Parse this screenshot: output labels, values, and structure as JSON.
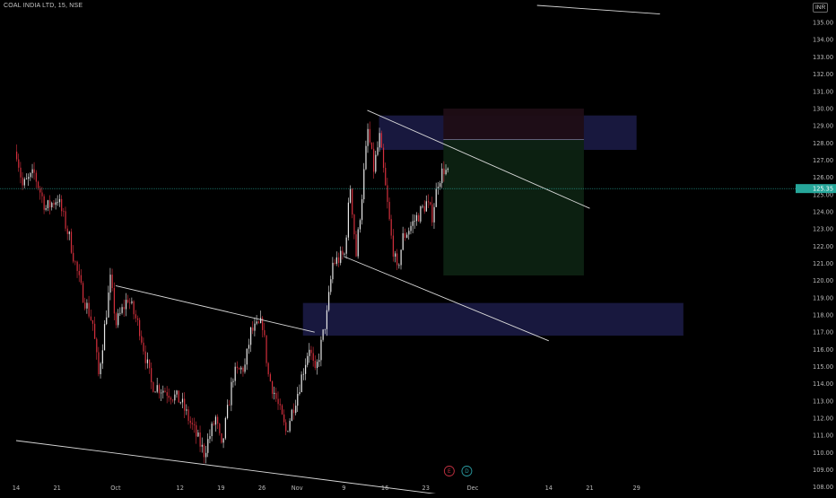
{
  "header": {
    "symbol_line": "COAL INDIA LTD, 15, NSE",
    "currency": "INR"
  },
  "colors": {
    "background": "#000000",
    "up_candle": "#e8e8e8",
    "down_candle": "#d32f3c",
    "price_line": "#26a69a",
    "trendline": "#d8d8d8",
    "zone": "#1c1c4a",
    "target_zone": "#0d2212",
    "stop_zone": "#1f0d15"
  },
  "markers": [
    {
      "label": "E",
      "kind": "earnings",
      "date": "Nov 27"
    },
    {
      "label": "D",
      "kind": "dividend",
      "date": "Nov 30"
    }
  ],
  "chart_data": {
    "type": "candlestick",
    "title": "COAL INDIA LTD, 15, NSE",
    "y_axis_side": "right",
    "ylim": [
      107.5,
      135.7
    ],
    "y_ticks": [
      "108.00",
      "109.00",
      "110.00",
      "111.00",
      "112.00",
      "113.00",
      "114.00",
      "115.00",
      "116.00",
      "117.00",
      "118.00",
      "119.00",
      "120.00",
      "121.00",
      "122.00",
      "123.00",
      "124.00",
      "125.00",
      "126.00",
      "127.00",
      "128.00",
      "129.00",
      "130.00",
      "131.00",
      "132.00",
      "133.00",
      "134.00",
      "135.00"
    ],
    "x_ticks": [
      "14",
      "21",
      "Oct",
      "12",
      "19",
      "26",
      "Nov",
      "9",
      "16",
      "23",
      "Dec",
      "14",
      "21",
      "29"
    ],
    "last_price": "125.35",
    "price_path": [
      [
        "Sep 14",
        127.5
      ],
      [
        "Sep 15",
        125.5
      ],
      [
        "Sep 17",
        126.2
      ],
      [
        "Sep 19",
        124.2
      ],
      [
        "Sep 21",
        124.8
      ],
      [
        "Sep 23",
        122.5
      ],
      [
        "Sep 25",
        119.5
      ],
      [
        "Sep 27",
        117.5
      ],
      [
        "Sep 28",
        114.5
      ],
      [
        "Sep 30",
        120.0
      ],
      [
        "Oct 1",
        117.5
      ],
      [
        "Oct 3",
        119.0
      ],
      [
        "Oct 5",
        117.2
      ],
      [
        "Oct 7",
        114.0
      ],
      [
        "Oct 10",
        113.5
      ],
      [
        "Oct 12",
        113.0
      ],
      [
        "Oct 14",
        111.5
      ],
      [
        "Oct 16",
        110.0
      ],
      [
        "Oct 18",
        112.0
      ],
      [
        "Oct 19",
        110.2
      ],
      [
        "Oct 21",
        114.5
      ],
      [
        "Oct 23",
        115.0
      ],
      [
        "Oct 24",
        117.0
      ],
      [
        "Oct 26",
        117.5
      ],
      [
        "Oct 27",
        114.5
      ],
      [
        "Oct 28",
        113.5
      ],
      [
        "Oct 30",
        111.2
      ],
      [
        "Nov 1",
        113.5
      ],
      [
        "Nov 3",
        116.2
      ],
      [
        "Nov 4",
        114.5
      ],
      [
        "Nov 6",
        118.0
      ],
      [
        "Nov 7",
        121.0
      ],
      [
        "Nov 9",
        121.5
      ],
      [
        "Nov 10",
        125.5
      ],
      [
        "Nov 11",
        121.5
      ],
      [
        "Nov 12",
        125.0
      ],
      [
        "Nov 13",
        128.7
      ],
      [
        "Nov 14",
        126.5
      ],
      [
        "Nov 15",
        128.3
      ],
      [
        "Nov 17",
        122.5
      ],
      [
        "Nov 18",
        120.5
      ],
      [
        "Nov 19",
        122.5
      ],
      [
        "Nov 21",
        123.5
      ],
      [
        "Nov 23",
        124.5
      ],
      [
        "Nov 24",
        123.8
      ],
      [
        "Nov 25",
        125.8
      ],
      [
        "Nov 26",
        126.5
      ],
      [
        "Nov 27",
        126.0
      ]
    ],
    "trendlines": [
      {
        "name": "upper-resistance",
        "from": [
          "Nov 13",
          129.9
        ],
        "to": [
          "Dec 21",
          124.2
        ]
      },
      {
        "name": "lower-support",
        "from": [
          "Nov 9",
          121.4
        ],
        "to": [
          "Dec 14",
          116.5
        ]
      },
      {
        "name": "previous-resistance",
        "from": [
          "Oct 1",
          119.7
        ],
        "to": [
          "Nov 4",
          117.0
        ]
      },
      {
        "name": "long-support",
        "from": [
          "Sep 14",
          110.7
        ],
        "to": [
          "Nov 27",
          107.5
        ]
      },
      {
        "name": "top-right-line",
        "from": [
          "Dec 12",
          136.0
        ],
        "to": [
          "Jan 2",
          135.5
        ]
      }
    ],
    "zones": [
      {
        "name": "supply-zone",
        "from": "Nov 15",
        "to": "Dec 29",
        "low": 127.6,
        "high": 129.6
      },
      {
        "name": "demand-zone",
        "from": "Nov 2",
        "to": "Jan 6",
        "low": 116.8,
        "high": 118.7
      },
      {
        "name": "position-target",
        "from": "Nov 26",
        "to": "Dec 20",
        "low": 120.3,
        "high": 128.2
      },
      {
        "name": "position-stop",
        "from": "Nov 26",
        "to": "Dec 20",
        "low": 128.2,
        "high": 130.0
      }
    ],
    "grid": false,
    "legend": "none"
  }
}
